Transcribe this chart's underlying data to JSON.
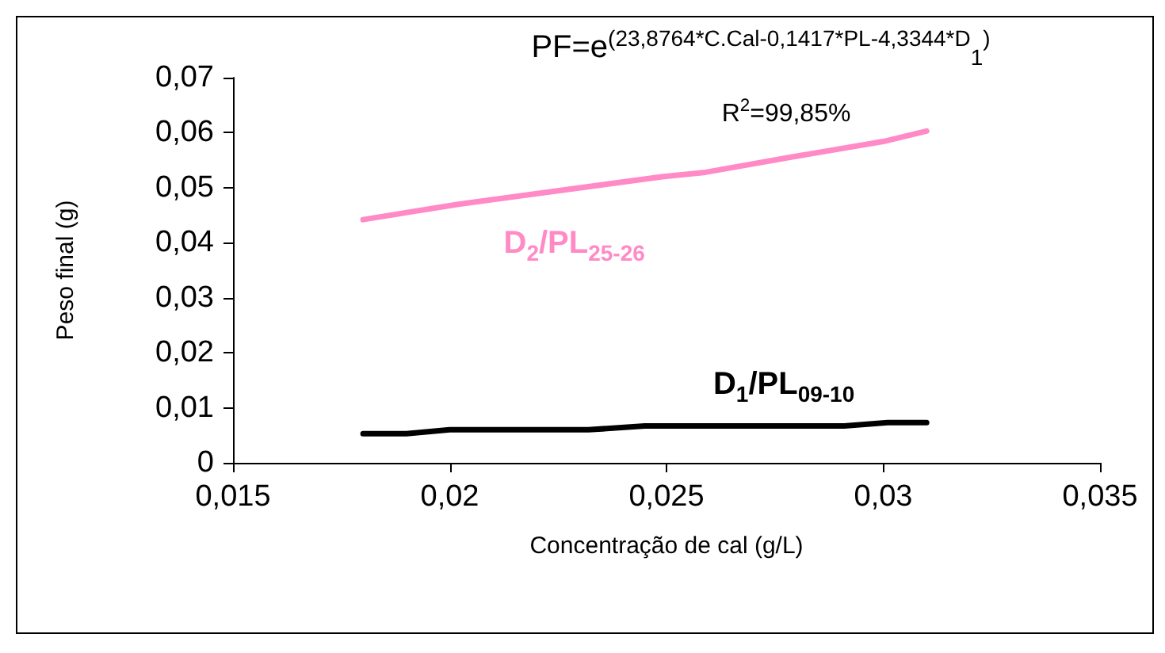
{
  "chart_data": {
    "type": "line",
    "xlabel": "Concentração de cal (g/L)",
    "ylabel": "Peso final (g)",
    "annotations": [
      "PF=e$^{(23,8764*C.Cal-0,1417*PL-4,3344*D}$$_{1}$$^{)}$",
      "R$^{2}$=99,85%"
    ],
    "xlim": [
      0.015,
      0.035
    ],
    "xticks": [
      {
        "value": 0.015,
        "label": "0,015"
      },
      {
        "value": 0.02,
        "label": "0,02"
      },
      {
        "value": 0.025,
        "label": "0,025"
      },
      {
        "value": 0.03,
        "label": "0,03"
      },
      {
        "value": 0.035,
        "label": "0,035"
      }
    ],
    "ylim": [
      0,
      0.07
    ],
    "yticks": [
      0,
      {
        "value": 0.01,
        "label": "0,01"
      },
      {
        "value": 0.02,
        "label": "0,02"
      },
      {
        "value": 0.03,
        "label": "0,03"
      },
      {
        "value": 0.04,
        "label": "0,04"
      },
      {
        "value": 0.05,
        "label": "0,05"
      },
      {
        "value": 0.06,
        "label": "0,06"
      },
      {
        "value": 0.07,
        "label": "0,07"
      }
    ],
    "grid": false,
    "legend": false,
    "marker": "none",
    "line_style": "solid",
    "series": [
      {
        "name": "D$_{2}$/PL$_{25-26}$",
        "color": "#ff8ac6",
        "x": [
          0.018,
          0.0202,
          0.0249,
          0.0259,
          0.0279,
          0.03,
          0.031
        ],
        "values": [
          0.0442,
          0.047,
          0.052,
          0.0528,
          0.0556,
          0.0584,
          0.0603
        ]
      },
      {
        "name": "D$_{1}$/PL$_{09-10}$",
        "color": "#000000",
        "x": [
          0.018,
          0.019,
          0.02,
          0.0232,
          0.0245,
          0.0291,
          0.0301,
          0.031
        ],
        "values": [
          0.0053,
          0.0053,
          0.006,
          0.006,
          0.0067,
          0.0067,
          0.0073,
          0.0073
        ]
      }
    ]
  }
}
